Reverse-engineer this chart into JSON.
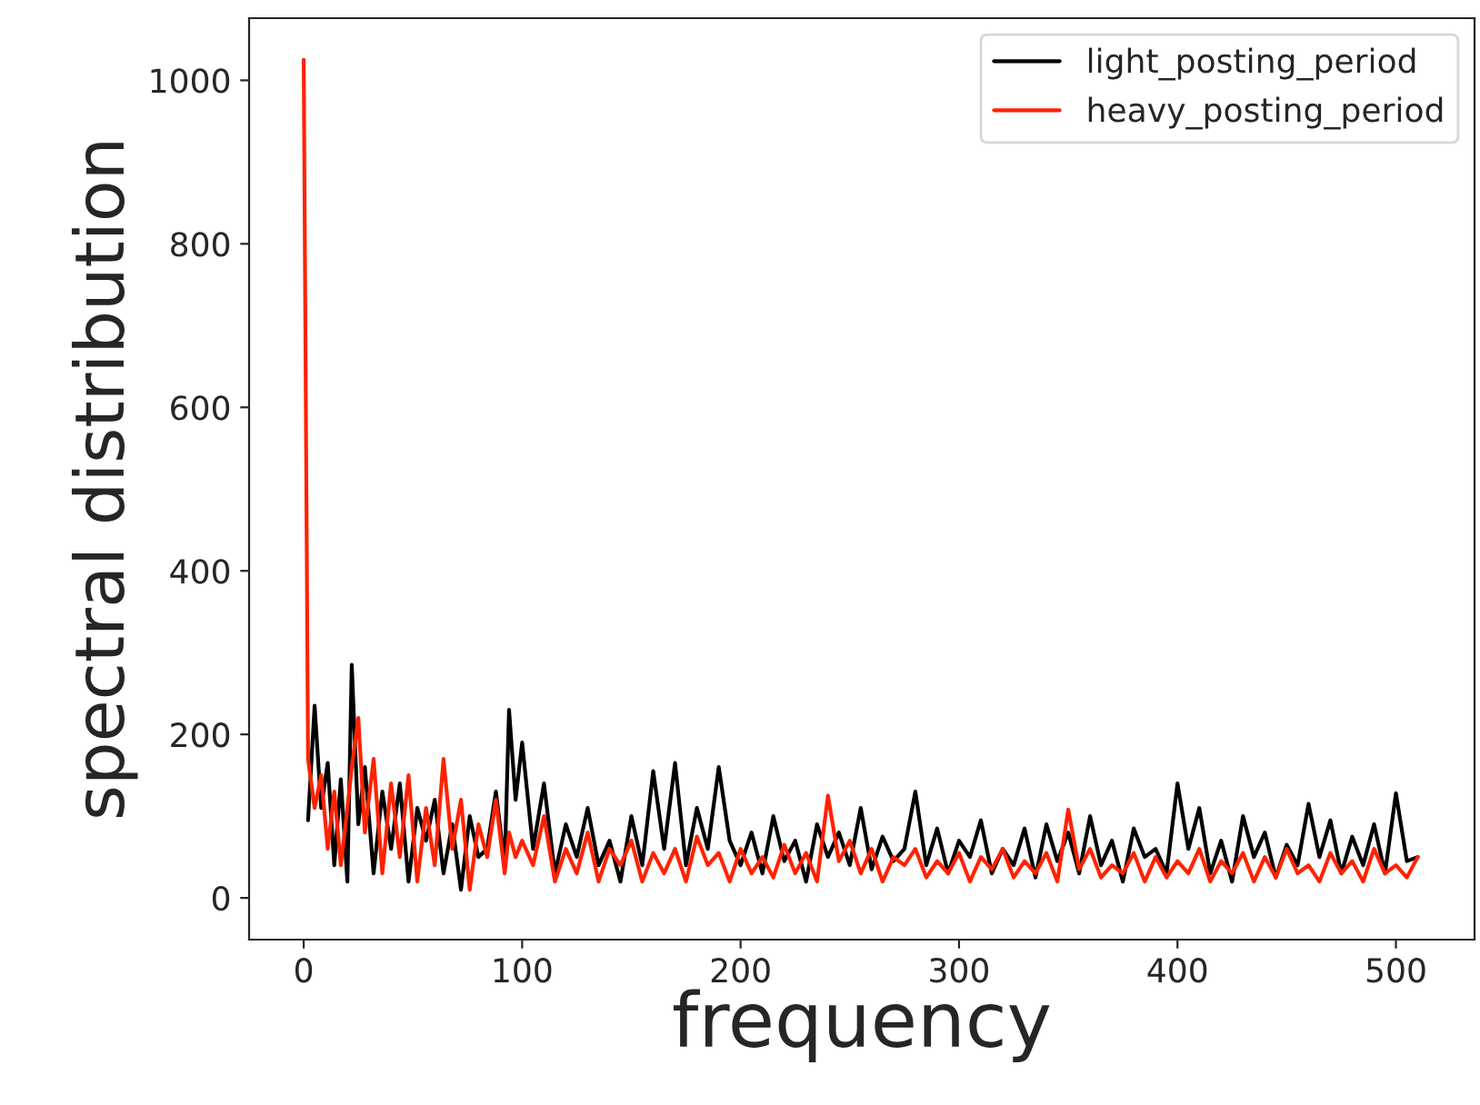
{
  "chart_data": {
    "type": "line",
    "xlabel": "frequency",
    "ylabel": "spectral distribution",
    "x": [
      0,
      2,
      5,
      8,
      11,
      14,
      17,
      20,
      22,
      25,
      28,
      32,
      36,
      40,
      44,
      48,
      52,
      56,
      60,
      64,
      68,
      72,
      76,
      80,
      84,
      88,
      92,
      94,
      97,
      100,
      105,
      110,
      115,
      120,
      125,
      130,
      135,
      140,
      145,
      150,
      155,
      160,
      165,
      170,
      175,
      180,
      185,
      190,
      195,
      200,
      205,
      210,
      215,
      220,
      225,
      230,
      235,
      240,
      245,
      250,
      255,
      260,
      265,
      270,
      275,
      280,
      285,
      290,
      295,
      300,
      305,
      310,
      315,
      320,
      325,
      330,
      335,
      340,
      345,
      350,
      355,
      360,
      365,
      370,
      375,
      380,
      385,
      390,
      395,
      400,
      405,
      410,
      415,
      420,
      425,
      430,
      435,
      440,
      445,
      450,
      455,
      460,
      465,
      470,
      475,
      480,
      485,
      490,
      495,
      500,
      505,
      510
    ],
    "series": [
      {
        "name": "light_posting_period",
        "color": "#000000",
        "values": [
          null,
          95,
          235,
          110,
          165,
          40,
          145,
          20,
          285,
          90,
          160,
          30,
          130,
          60,
          140,
          20,
          110,
          70,
          120,
          30,
          90,
          10,
          100,
          50,
          60,
          130,
          40,
          230,
          120,
          190,
          60,
          140,
          30,
          90,
          50,
          110,
          40,
          70,
          20,
          100,
          40,
          155,
          60,
          165,
          40,
          110,
          60,
          160,
          70,
          40,
          80,
          30,
          100,
          45,
          70,
          20,
          90,
          50,
          80,
          40,
          110,
          35,
          75,
          45,
          60,
          130,
          40,
          85,
          30,
          70,
          50,
          95,
          30,
          60,
          40,
          85,
          25,
          90,
          45,
          80,
          30,
          100,
          40,
          70,
          20,
          85,
          50,
          60,
          30,
          140,
          60,
          110,
          30,
          70,
          20,
          100,
          50,
          80,
          25,
          65,
          40,
          115,
          50,
          95,
          30,
          75,
          40,
          90,
          30,
          128,
          45,
          50
        ]
      },
      {
        "name": "heavy_posting_period",
        "color": "#ff2200",
        "values": [
          1025,
          170,
          110,
          150,
          60,
          130,
          40,
          110,
          160,
          220,
          80,
          170,
          30,
          140,
          50,
          150,
          20,
          110,
          40,
          170,
          60,
          120,
          10,
          90,
          50,
          120,
          30,
          80,
          50,
          70,
          40,
          100,
          20,
          60,
          30,
          80,
          20,
          60,
          40,
          70,
          20,
          55,
          30,
          60,
          20,
          75,
          40,
          55,
          20,
          60,
          30,
          50,
          25,
          65,
          30,
          55,
          20,
          125,
          45,
          70,
          30,
          60,
          20,
          50,
          40,
          60,
          25,
          45,
          30,
          55,
          20,
          50,
          35,
          60,
          25,
          45,
          30,
          55,
          20,
          108,
          35,
          60,
          25,
          40,
          30,
          55,
          20,
          50,
          25,
          45,
          30,
          60,
          20,
          45,
          30,
          55,
          20,
          50,
          25,
          60,
          30,
          40,
          20,
          55,
          30,
          45,
          20,
          60,
          30,
          40,
          25,
          50
        ]
      }
    ],
    "xlim": [
      -25,
      536
    ],
    "ylim": [
      -51,
      1076
    ],
    "xticks": [
      0,
      100,
      200,
      300,
      400,
      500
    ],
    "yticks": [
      0,
      200,
      400,
      600,
      800,
      1000
    ],
    "grid": false,
    "legend": "top right",
    "marker": "none",
    "line_style": "solid"
  }
}
